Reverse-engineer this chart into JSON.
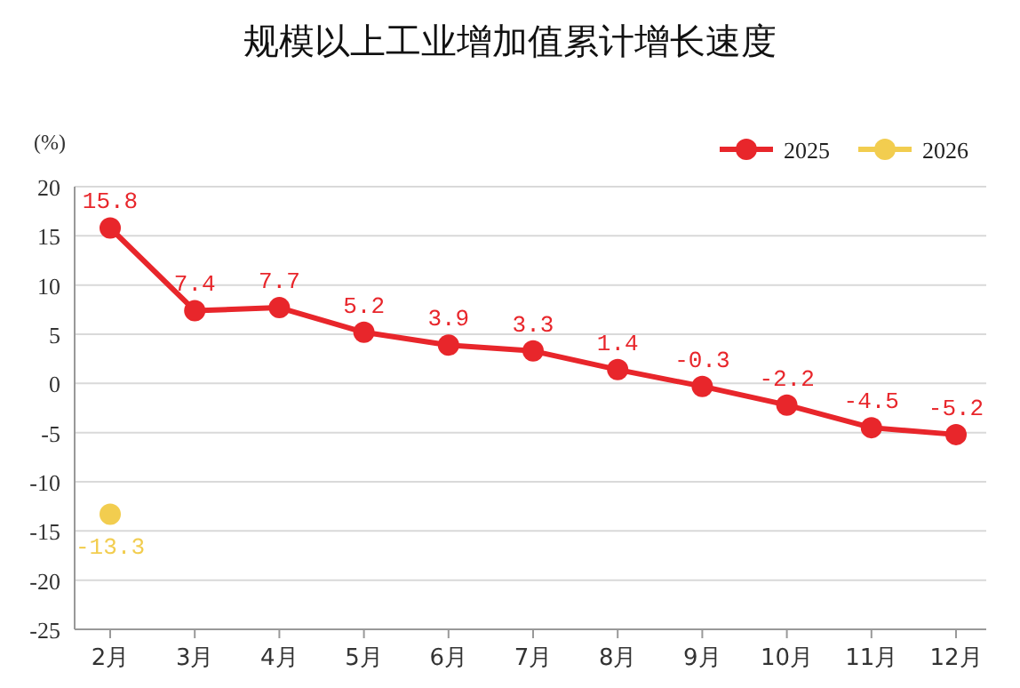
{
  "chart_data": {
    "type": "line",
    "title": "规模以上工业增加值累计增长速度",
    "ylabel": "(%)",
    "categories": [
      "2月",
      "3月",
      "4月",
      "5月",
      "6月",
      "7月",
      "8月",
      "9月",
      "10月",
      "11月",
      "12月"
    ],
    "series": [
      {
        "name": "2025",
        "color": "#e8262b",
        "values": [
          15.8,
          7.4,
          7.7,
          5.2,
          3.9,
          3.3,
          1.4,
          -0.3,
          -2.2,
          -4.5,
          -5.2
        ]
      },
      {
        "name": "2026",
        "color": "#f2cd4f",
        "values": [
          -13.3,
          null,
          null,
          null,
          null,
          null,
          null,
          null,
          null,
          null,
          null
        ]
      }
    ],
    "ylim": [
      -25,
      20
    ],
    "yticks": [
      -25,
      -20,
      -15,
      -10,
      -5,
      0,
      5,
      10,
      15,
      20
    ],
    "grid": "y",
    "legend": "top right",
    "marker": "circle",
    "data_labels": true
  }
}
